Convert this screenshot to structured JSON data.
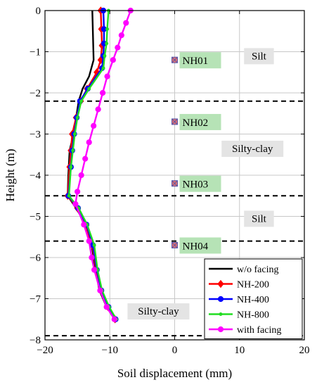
{
  "chart_data": {
    "type": "line",
    "xlabel": "Soil displacement (mm)",
    "ylabel": "Height (m)",
    "xlim": [
      -20,
      20
    ],
    "ylim": [
      -8,
      0
    ],
    "xticks": [
      -20,
      -10,
      0,
      10,
      20
    ],
    "yticks": [
      0,
      -1,
      -2,
      -3,
      -4,
      -5,
      -6,
      -7,
      -8
    ],
    "grid": true,
    "legend_position": "bottom-right",
    "series": [
      {
        "name": "w/o facing",
        "color": "#000000",
        "marker": "none",
        "points": [
          [
            -12.7,
            0
          ],
          [
            -12.6,
            -0.6
          ],
          [
            -12.5,
            -1.2
          ],
          [
            -13.2,
            -1.6
          ],
          [
            -14.2,
            -1.9
          ],
          [
            -14.8,
            -2.2
          ],
          [
            -15.2,
            -2.6
          ],
          [
            -15.6,
            -3.0
          ],
          [
            -16.2,
            -3.4
          ],
          [
            -16.4,
            -4.0
          ],
          [
            -16.5,
            -4.5
          ],
          [
            -15.2,
            -4.8
          ],
          [
            -13.7,
            -5.2
          ],
          [
            -12.8,
            -5.7
          ],
          [
            -12.2,
            -6.3
          ],
          [
            -11.6,
            -6.8
          ],
          [
            -10.5,
            -7.2
          ],
          [
            -9.2,
            -7.5
          ]
        ]
      },
      {
        "name": "NH-200",
        "color": "#ff0000",
        "marker": "diamond",
        "points": [
          [
            -11.4,
            0
          ],
          [
            -11.3,
            -0.45
          ],
          [
            -11.2,
            -0.85
          ],
          [
            -11.4,
            -1.2
          ],
          [
            -12.0,
            -1.5
          ],
          [
            -13.5,
            -1.9
          ],
          [
            -14.5,
            -2.2
          ],
          [
            -15.2,
            -2.6
          ],
          [
            -15.8,
            -3.0
          ],
          [
            -16.0,
            -3.4
          ],
          [
            -16.2,
            -3.8
          ],
          [
            -16.5,
            -4.5
          ],
          [
            -15.0,
            -4.8
          ],
          [
            -13.8,
            -5.2
          ],
          [
            -12.7,
            -5.7
          ],
          [
            -12.1,
            -6.3
          ],
          [
            -11.4,
            -6.8
          ],
          [
            -10.3,
            -7.2
          ],
          [
            -9.2,
            -7.5
          ]
        ]
      },
      {
        "name": "NH-400",
        "color": "#0000ff",
        "marker": "circle",
        "points": [
          [
            -11.0,
            0
          ],
          [
            -10.9,
            -0.45
          ],
          [
            -10.9,
            -0.8
          ],
          [
            -11.0,
            -1.1
          ],
          [
            -11.2,
            -1.4
          ],
          [
            -13.4,
            -1.9
          ],
          [
            -14.6,
            -2.2
          ],
          [
            -15.1,
            -2.6
          ],
          [
            -15.5,
            -3.0
          ],
          [
            -15.8,
            -3.4
          ],
          [
            -16.0,
            -3.8
          ],
          [
            -16.4,
            -4.5
          ],
          [
            -14.9,
            -4.8
          ],
          [
            -13.6,
            -5.2
          ],
          [
            -12.6,
            -5.7
          ],
          [
            -12.0,
            -6.3
          ],
          [
            -11.3,
            -6.8
          ],
          [
            -10.2,
            -7.2
          ],
          [
            -9.1,
            -7.5
          ]
        ]
      },
      {
        "name": "NH-800",
        "color": "#22dd22",
        "marker": "dot",
        "points": [
          [
            -10.2,
            0
          ],
          [
            -10.4,
            -0.45
          ],
          [
            -10.5,
            -0.8
          ],
          [
            -10.8,
            -1.1
          ],
          [
            -11.0,
            -1.4
          ],
          [
            -13.2,
            -1.9
          ],
          [
            -14.4,
            -2.2
          ],
          [
            -15.0,
            -2.6
          ],
          [
            -15.4,
            -3.0
          ],
          [
            -15.7,
            -3.4
          ],
          [
            -16.0,
            -3.8
          ],
          [
            -16.3,
            -4.5
          ],
          [
            -14.8,
            -4.8
          ],
          [
            -13.5,
            -5.2
          ],
          [
            -12.4,
            -5.7
          ],
          [
            -11.9,
            -6.3
          ],
          [
            -11.2,
            -6.8
          ],
          [
            -10.1,
            -7.2
          ],
          [
            -9.0,
            -7.5
          ]
        ]
      },
      {
        "name": "with facing",
        "color": "#ff00ff",
        "marker": "circle",
        "points": [
          [
            -6.8,
            0
          ],
          [
            -7.5,
            -0.3
          ],
          [
            -8.2,
            -0.6
          ],
          [
            -8.8,
            -0.9
          ],
          [
            -9.5,
            -1.2
          ],
          [
            -10.4,
            -1.6
          ],
          [
            -11.1,
            -2.0
          ],
          [
            -11.8,
            -2.4
          ],
          [
            -12.5,
            -2.8
          ],
          [
            -13.2,
            -3.2
          ],
          [
            -13.8,
            -3.6
          ],
          [
            -14.4,
            -4.0
          ],
          [
            -15.0,
            -4.4
          ],
          [
            -15.3,
            -4.7
          ],
          [
            -14.0,
            -5.2
          ],
          [
            -13.2,
            -5.6
          ],
          [
            -12.8,
            -6.0
          ],
          [
            -12.4,
            -6.3
          ],
          [
            -11.5,
            -6.8
          ],
          [
            -10.5,
            -7.2
          ],
          [
            -9.3,
            -7.5
          ]
        ]
      }
    ],
    "boundaries": [
      -2.2,
      -4.5,
      -5.6,
      -7.9
    ],
    "sensors": [
      {
        "label": "NH01",
        "x": 0,
        "y": -1.2
      },
      {
        "label": "NH02",
        "x": 0,
        "y": -2.7
      },
      {
        "label": "NH03",
        "x": 0,
        "y": -4.2
      },
      {
        "label": "NH04",
        "x": 0,
        "y": -5.7
      }
    ],
    "soil_labels": [
      {
        "text": "Silt",
        "x": 13,
        "y": -1.1
      },
      {
        "text": "Silty-clay",
        "x": 12,
        "y": -3.35
      },
      {
        "text": "Silt",
        "x": 13,
        "y": -5.05
      },
      {
        "text": "Silty-clay",
        "x": -2.5,
        "y": -7.3
      }
    ],
    "colors": {
      "grid": "#c8c8c8",
      "sensor_box": "#b6e3b6",
      "soil_box": "#e4e4e4",
      "sensor_marker_fill": "#e07070",
      "sensor_marker_edge": "#5555aa"
    }
  }
}
